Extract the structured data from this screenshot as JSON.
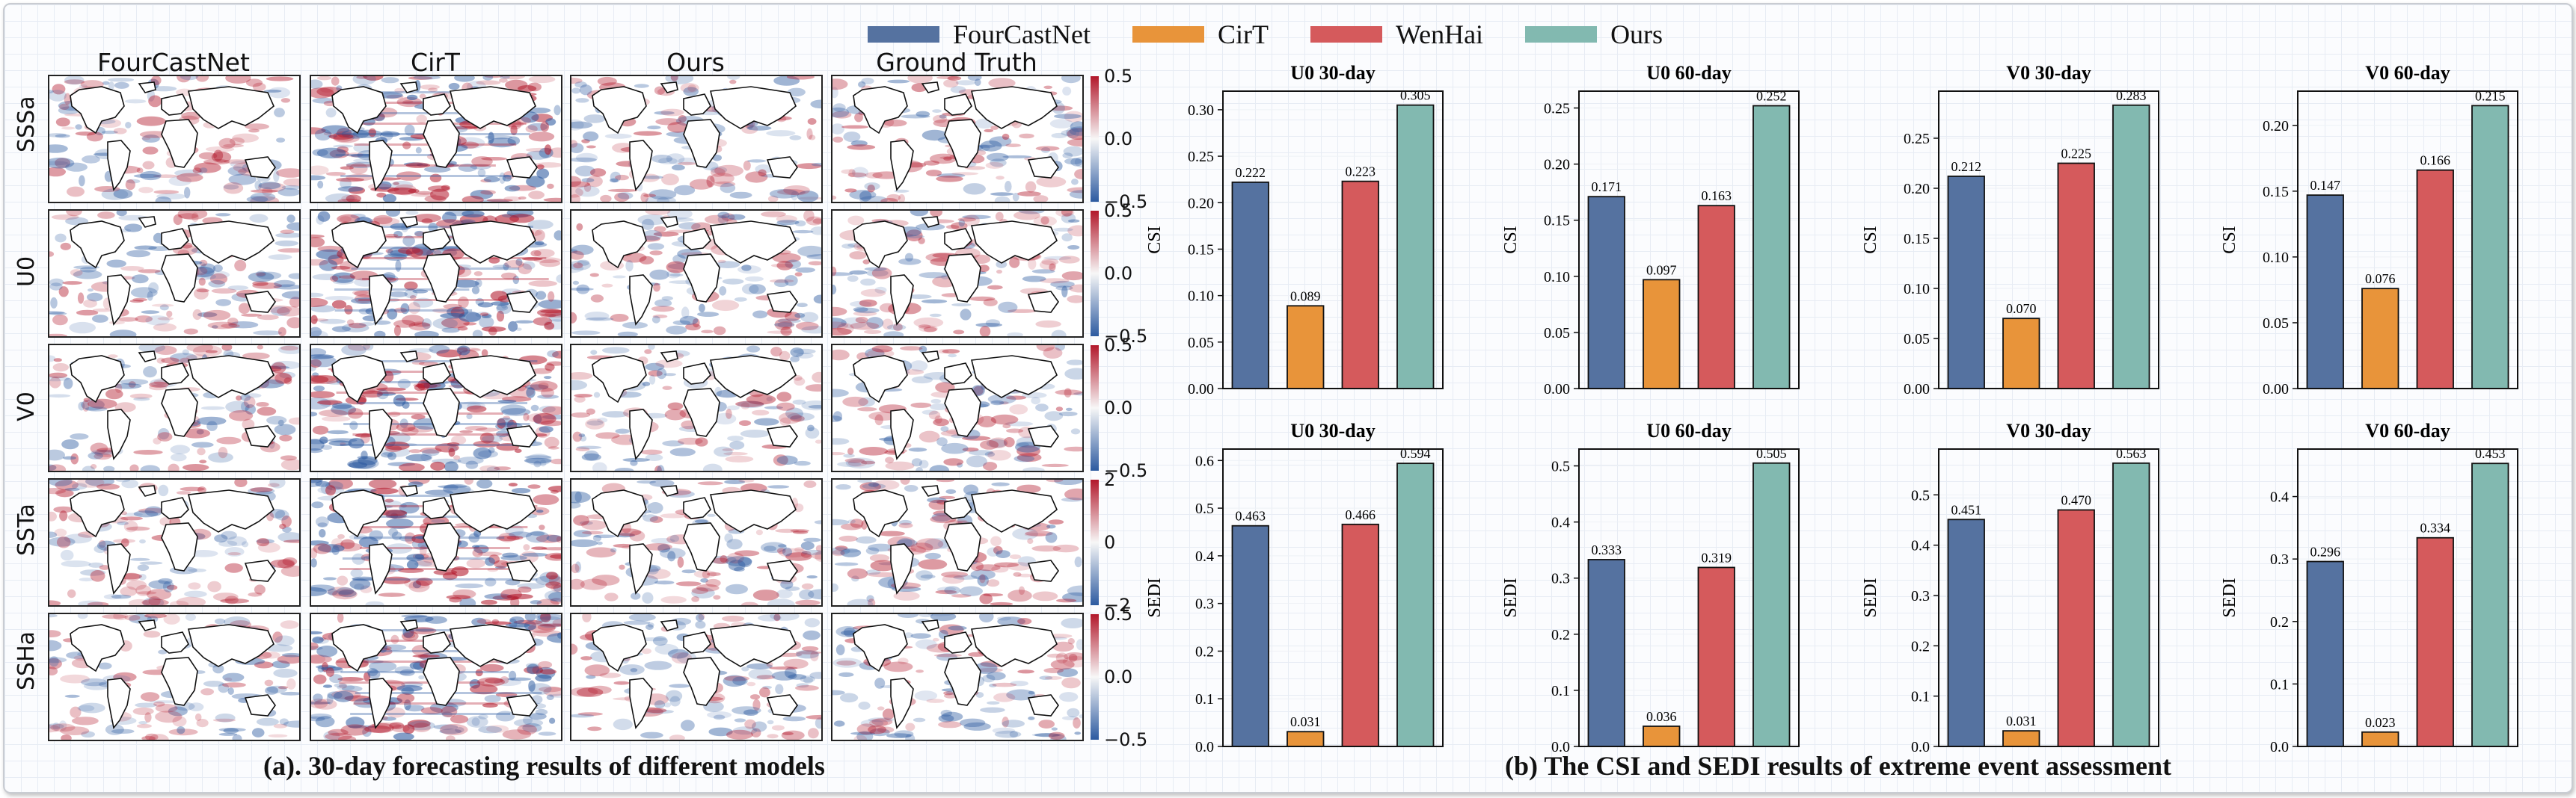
{
  "legend": [
    {
      "name": "FourCastNet",
      "color": "#5572a0"
    },
    {
      "name": "CirT",
      "color": "#e8943a"
    },
    {
      "name": "WenHai",
      "color": "#d55a5c"
    },
    {
      "name": "Ours",
      "color": "#82b9b0"
    }
  ],
  "maps": {
    "columns": [
      "FourCastNet",
      "CirT",
      "Ours",
      "Ground Truth"
    ],
    "rows": [
      {
        "label": "SSSa",
        "ticks": [
          "0.5",
          "0.0",
          "−0.5"
        ]
      },
      {
        "label": "U0",
        "ticks": [
          "0.5",
          "0.0",
          "−0.5"
        ]
      },
      {
        "label": "V0",
        "ticks": [
          "0.5",
          "0.0",
          "−0.5"
        ]
      },
      {
        "label": "SSTa",
        "ticks": [
          "2",
          "0",
          "−2"
        ]
      },
      {
        "label": "SSHa",
        "ticks": [
          "0.5",
          "0.0",
          "−0.5"
        ]
      }
    ],
    "caption": "(a). 30-day forecasting results of different models",
    "colormap": {
      "negative": "#2c5aa0",
      "positive": "#b2182b"
    }
  },
  "bar_caption": "(b) The CSI and SEDI results of extreme event assessment",
  "chart_data": [
    {
      "type": "bar",
      "title": "U0 30-day",
      "ylabel": "CSI",
      "categories": [
        "FourCastNet",
        "CirT",
        "WenHai",
        "Ours"
      ],
      "values": [
        0.222,
        0.089,
        0.223,
        0.305
      ],
      "labels": [
        "0.222",
        "0.089",
        "0.223",
        "0.305"
      ],
      "ylim": [
        0,
        0.32
      ],
      "yticks": [
        0,
        0.05,
        0.1,
        0.15,
        0.2,
        0.25,
        0.3
      ],
      "ytick_labels": [
        "0.00",
        "0.05",
        "0.10",
        "0.15",
        "0.20",
        "0.25",
        "0.30"
      ]
    },
    {
      "type": "bar",
      "title": "U0 60-day",
      "ylabel": "CSI",
      "categories": [
        "FourCastNet",
        "CirT",
        "WenHai",
        "Ours"
      ],
      "values": [
        0.171,
        0.097,
        0.163,
        0.252
      ],
      "labels": [
        "0.171",
        "0.097",
        "0.163",
        "0.252"
      ],
      "ylim": [
        0,
        0.265
      ],
      "yticks": [
        0,
        0.05,
        0.1,
        0.15,
        0.2,
        0.25
      ],
      "ytick_labels": [
        "0.00",
        "0.05",
        "0.10",
        "0.15",
        "0.20",
        "0.25"
      ]
    },
    {
      "type": "bar",
      "title": "V0 30-day",
      "ylabel": "CSI",
      "categories": [
        "FourCastNet",
        "CirT",
        "WenHai",
        "Ours"
      ],
      "values": [
        0.212,
        0.07,
        0.225,
        0.283
      ],
      "labels": [
        "0.212",
        "0.070",
        "0.225",
        "0.283"
      ],
      "ylim": [
        0,
        0.297
      ],
      "yticks": [
        0,
        0.05,
        0.1,
        0.15,
        0.2,
        0.25
      ],
      "ytick_labels": [
        "0.00",
        "0.05",
        "0.10",
        "0.15",
        "0.20",
        "0.25"
      ]
    },
    {
      "type": "bar",
      "title": "V0 60-day",
      "ylabel": "CSI",
      "categories": [
        "FourCastNet",
        "CirT",
        "WenHai",
        "Ours"
      ],
      "values": [
        0.147,
        0.076,
        0.166,
        0.215
      ],
      "labels": [
        "0.147",
        "0.076",
        "0.166",
        "0.215"
      ],
      "ylim": [
        0,
        0.226
      ],
      "yticks": [
        0,
        0.05,
        0.1,
        0.15,
        0.2
      ],
      "ytick_labels": [
        "0.00",
        "0.05",
        "0.10",
        "0.15",
        "0.20"
      ]
    },
    {
      "type": "bar",
      "title": "U0 30-day",
      "ylabel": "SEDI",
      "categories": [
        "FourCastNet",
        "CirT",
        "WenHai",
        "Ours"
      ],
      "values": [
        0.463,
        0.031,
        0.466,
        0.594
      ],
      "labels": [
        "0.463",
        "0.031",
        "0.466",
        "0.594"
      ],
      "ylim": [
        0,
        0.624
      ],
      "yticks": [
        0,
        0.1,
        0.2,
        0.3,
        0.4,
        0.5,
        0.6
      ],
      "ytick_labels": [
        "0.0",
        "0.1",
        "0.2",
        "0.3",
        "0.4",
        "0.5",
        "0.6"
      ]
    },
    {
      "type": "bar",
      "title": "U0 60-day",
      "ylabel": "SEDI",
      "categories": [
        "FourCastNet",
        "CirT",
        "WenHai",
        "Ours"
      ],
      "values": [
        0.333,
        0.036,
        0.319,
        0.505
      ],
      "labels": [
        "0.333",
        "0.036",
        "0.319",
        "0.505"
      ],
      "ylim": [
        0,
        0.53
      ],
      "yticks": [
        0,
        0.1,
        0.2,
        0.3,
        0.4,
        0.5
      ],
      "ytick_labels": [
        "0.0",
        "0.1",
        "0.2",
        "0.3",
        "0.4",
        "0.5"
      ]
    },
    {
      "type": "bar",
      "title": "V0 30-day",
      "ylabel": "SEDI",
      "categories": [
        "FourCastNet",
        "CirT",
        "WenHai",
        "Ours"
      ],
      "values": [
        0.451,
        0.031,
        0.47,
        0.563
      ],
      "labels": [
        "0.451",
        "0.031",
        "0.470",
        "0.563"
      ],
      "ylim": [
        0,
        0.591
      ],
      "yticks": [
        0,
        0.1,
        0.2,
        0.3,
        0.4,
        0.5
      ],
      "ytick_labels": [
        "0.0",
        "0.1",
        "0.2",
        "0.3",
        "0.4",
        "0.5"
      ]
    },
    {
      "type": "bar",
      "title": "V0 60-day",
      "ylabel": "SEDI",
      "categories": [
        "FourCastNet",
        "CirT",
        "WenHai",
        "Ours"
      ],
      "values": [
        0.296,
        0.023,
        0.334,
        0.453
      ],
      "labels": [
        "0.296",
        "0.023",
        "0.334",
        "0.453"
      ],
      "ylim": [
        0,
        0.476
      ],
      "yticks": [
        0,
        0.1,
        0.2,
        0.3,
        0.4
      ],
      "ytick_labels": [
        "0.0",
        "0.1",
        "0.2",
        "0.3",
        "0.4"
      ]
    }
  ]
}
